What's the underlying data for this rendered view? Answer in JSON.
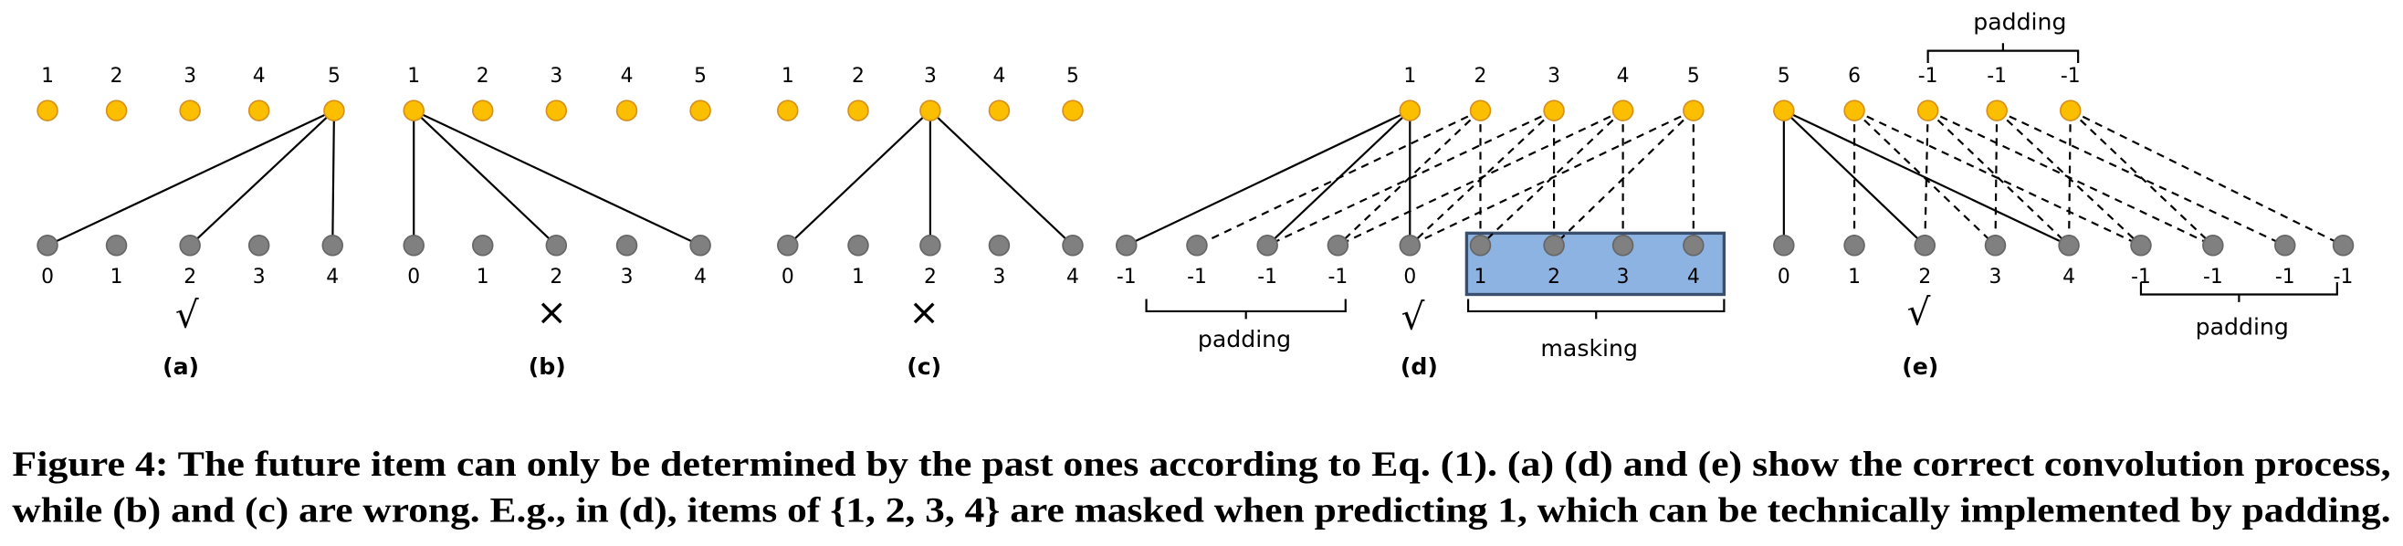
{
  "panels": [
    {
      "label": "(a)",
      "top": [
        "1",
        "2",
        "3",
        "4",
        "5"
      ],
      "bottom": [
        "0",
        "1",
        "2",
        "3",
        "4"
      ],
      "mark": "√"
    },
    {
      "label": "(b)",
      "top": [
        "1",
        "2",
        "3",
        "4",
        "5"
      ],
      "bottom": [
        "0",
        "1",
        "2",
        "3",
        "4"
      ],
      "mark": "×"
    },
    {
      "label": "(c)",
      "top": [
        "1",
        "2",
        "3",
        "4",
        "5"
      ],
      "bottom": [
        "0",
        "1",
        "2",
        "3",
        "4"
      ],
      "mark": "×"
    },
    {
      "label": "(d)",
      "top": [
        "1",
        "2",
        "3",
        "4",
        "5"
      ],
      "bottom": [
        "-1",
        "-1",
        "-1",
        "-1",
        "0",
        "1",
        "2",
        "3",
        "4"
      ],
      "mark": "√",
      "padding": "padding",
      "masking": "masking"
    },
    {
      "label": "(e)",
      "top": [
        "5",
        "6",
        "-1",
        "-1",
        "-1"
      ],
      "bottom": [
        "0",
        "1",
        "2",
        "3",
        "4",
        "-1",
        "-1",
        "-1",
        "-1"
      ],
      "mark": "√",
      "top_padding": "padding",
      "padding": "padding"
    }
  ],
  "caption": {
    "lines": [
      "Figure 4: The future item can only be determined by the past ones according to Eq. (1). (a) (d) and (e) show the correct convolution process,",
      "while (b) and (c) are wrong. E.g., in (d), items of {1, 2, 3, 4} are masked when predicting 1, which can be technically implemented by padding."
    ]
  }
}
